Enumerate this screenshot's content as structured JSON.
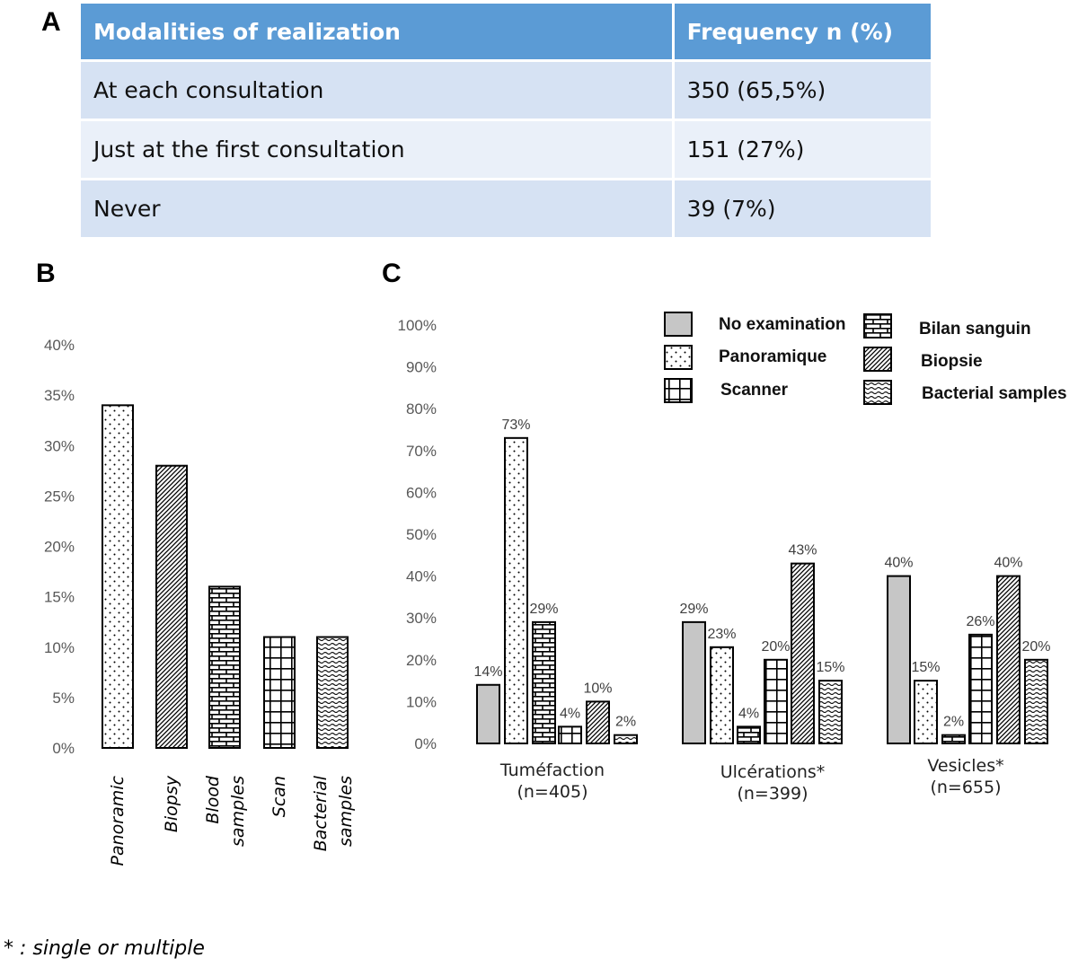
{
  "panels": {
    "a": "A",
    "b": "B",
    "c": "C"
  },
  "table_a": {
    "headers": [
      "Modalities of realization",
      "Frequency n (%)"
    ],
    "rows": [
      [
        "At each consultation",
        "350 (65,5%)"
      ],
      [
        "Just at the first consultation",
        "151 (27%)"
      ],
      [
        "Never",
        "39 (7%)"
      ]
    ],
    "colors": {
      "header": "#5b9bd5",
      "row_odd": "#d6e2f3",
      "row_even": "#eaf0f9"
    }
  },
  "chart_data": [
    {
      "type": "bar",
      "panel": "B",
      "categories": [
        "Panoramic",
        "Biopsy",
        "Blood samples",
        "Scan",
        "Bacterial samples"
      ],
      "category_lines": [
        [
          "Panoramic"
        ],
        [
          "Biopsy"
        ],
        [
          "Blood",
          "samples"
        ],
        [
          "Scan"
        ],
        [
          "Bacterial",
          "samples"
        ]
      ],
      "patterns": [
        "dots",
        "diagonal",
        "brick",
        "grid",
        "wave"
      ],
      "values": [
        34,
        28,
        16,
        11,
        11
      ],
      "ylim": [
        0,
        40
      ],
      "yticks": [
        "0%",
        "5%",
        "10%",
        "15%",
        "20%",
        "25%",
        "30%",
        "35%",
        "40%"
      ],
      "title": "",
      "xlabel": "",
      "ylabel": "",
      "grid": false
    },
    {
      "type": "bar",
      "panel": "C",
      "groups": [
        {
          "label": "Tuméfaction",
          "n": "(n=405)"
        },
        {
          "label": "Ulcérations*",
          "n": "(n=399)"
        },
        {
          "label": "Vesicles*",
          "n": "(n=655)"
        }
      ],
      "series": [
        {
          "name": "No examination",
          "pattern": "gray",
          "values": [
            14,
            29,
            40
          ],
          "labels": [
            "14%",
            "29%",
            "40%"
          ]
        },
        {
          "name": "Panoramique",
          "pattern": "dots",
          "values": [
            73,
            23,
            15
          ],
          "labels": [
            "73%",
            "23%",
            "15%"
          ]
        },
        {
          "name": "Bilan sanguin",
          "pattern": "brick",
          "values": [
            29,
            4,
            2
          ],
          "labels": [
            "29%",
            "4%",
            "2%"
          ]
        },
        {
          "name": "Scanner",
          "pattern": "grid",
          "values": [
            4,
            20,
            26
          ],
          "labels": [
            "4%",
            "20%",
            "26%"
          ]
        },
        {
          "name": "Biopsie",
          "pattern": "diagonal",
          "values": [
            10,
            43,
            40
          ],
          "labels": [
            "10%",
            "43%",
            "40%"
          ]
        },
        {
          "name": "Bacterial samples",
          "pattern": "wave",
          "values": [
            2,
            15,
            20
          ],
          "labels": [
            "2%",
            "15%",
            "20%"
          ]
        }
      ],
      "legend_order": [
        "No examination",
        "Bilan sanguin",
        "Panoramique",
        "Biopsie",
        "Scanner",
        "Bacterial samples"
      ],
      "legend_placement": "top-right",
      "ylim": [
        0,
        100
      ],
      "yticks": [
        "0%",
        "10%",
        "20%",
        "30%",
        "40%",
        "50%",
        "60%",
        "70%",
        "80%",
        "90%",
        "100%"
      ],
      "title": "",
      "xlabel": "",
      "ylabel": "",
      "grid": false
    }
  ],
  "footnote": "* : single or multiple"
}
